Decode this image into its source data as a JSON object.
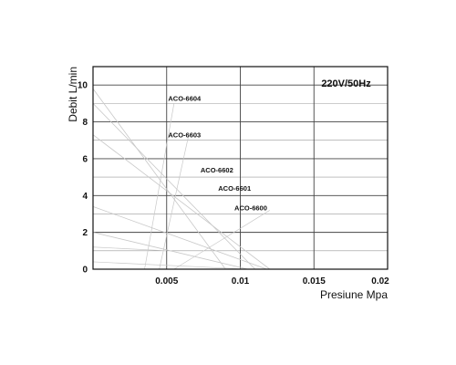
{
  "chart_data": {
    "type": "line",
    "title": "",
    "xlabel": "Presiune Mpa",
    "ylabel": "Debit L/min",
    "xlim": [
      0,
      0.02
    ],
    "ylim": [
      0,
      11
    ],
    "xticks": [
      0.005,
      0.01,
      0.015,
      0.02
    ],
    "xtick_labels": [
      "0.005",
      "0.01",
      "0.015",
      "0.02"
    ],
    "yticks": [
      0,
      2,
      4,
      6,
      8,
      10
    ],
    "ytick_labels": [
      "0",
      "2",
      "4",
      "6",
      "8",
      "10"
    ],
    "grid": true,
    "annotation": "220V/50Hz",
    "colors": {
      "frame": "#111111",
      "grid": "#555555",
      "curve": "#c8c8c8",
      "text": "#111111"
    },
    "series": [
      {
        "name": "ACO-6604",
        "x": [
          0,
          0.009
        ],
        "y": [
          9.8,
          0
        ]
      },
      {
        "name": "ACO-6603",
        "x": [
          0,
          0.011
        ],
        "y": [
          9.0,
          0
        ]
      },
      {
        "name": "ACO-6602",
        "x": [
          0,
          0.012
        ],
        "y": [
          7.3,
          0
        ]
      },
      {
        "name": "ACO-6601",
        "x": [
          0,
          0.0118
        ],
        "y": [
          3.4,
          0
        ]
      },
      {
        "name": "ACO-6600",
        "x": [
          0,
          0.0105
        ],
        "y": [
          2.0,
          0
        ]
      }
    ],
    "load_lines": [
      {
        "x": [
          0,
          0.005
        ],
        "y": [
          1.2,
          1.0
        ]
      },
      {
        "x": [
          0.0035,
          0.0055
        ],
        "y": [
          0,
          9.0
        ]
      },
      {
        "x": [
          0.0045,
          0.0065
        ],
        "y": [
          0,
          7.3
        ]
      },
      {
        "x": [
          0.0055,
          0.012
        ],
        "y": [
          0,
          3.2
        ]
      },
      {
        "x": [
          0,
          0.0105
        ],
        "y": [
          0.4,
          0
        ]
      }
    ]
  }
}
